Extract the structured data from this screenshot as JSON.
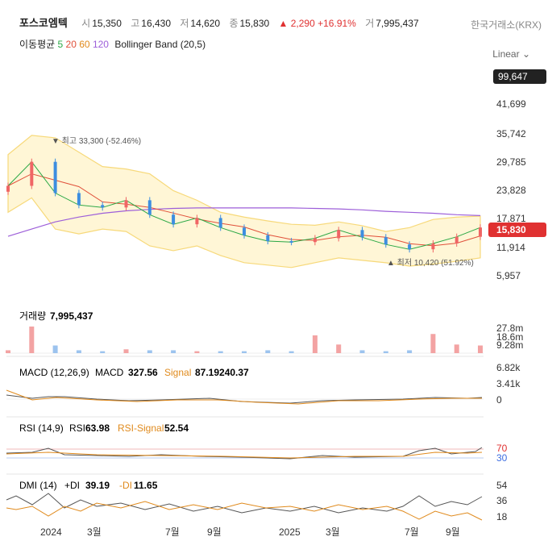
{
  "header": {
    "name": "포스코엠텍",
    "open_label": "시",
    "open": "15,350",
    "high_label": "고",
    "high": "16,430",
    "low_label": "저",
    "low": "14,620",
    "close_label": "종",
    "close": "15,830",
    "change": "▲ 2,290",
    "change_pct": "+16.91%",
    "volume_label": "거",
    "volume": "7,995,437",
    "exchange": "한국거래소(KRX)"
  },
  "ma_legend": {
    "label": "이동평균",
    "p5": "5",
    "p20": "20",
    "p60": "60",
    "p120": "120",
    "boll": "Bollinger Band (20,5)"
  },
  "scale_mode": "Linear",
  "colors": {
    "up": "#f06565",
    "down": "#3d8ee0",
    "ma5": "#2aa845",
    "ma20": "#e0503a",
    "ma60": "#e08a1c",
    "ma120": "#9d5fd9",
    "band_fill": "#fff6d6",
    "band_line": "#f7d97a"
  },
  "price_panel": {
    "yticks": [
      "41,699",
      "35,742",
      "29,785",
      "23,828",
      "17,871",
      "11,914",
      "5,957"
    ],
    "ytick_values": [
      41699,
      35742,
      29785,
      23828,
      17871,
      11914,
      5957
    ],
    "top_label": "99,647",
    "current_label": "15,830",
    "max_annotation": "▼ 최고 33,300 (-52.46%)",
    "min_annotation": "▲ 최저 10,420 (51.92%)"
  },
  "volume_panel": {
    "title": "거래량",
    "value": "7,995,437",
    "yticks": [
      "27.8m",
      "18.6m",
      "9.28m"
    ]
  },
  "macd_panel": {
    "title": "MACD (12,26,9)",
    "macd_label": "MACD",
    "macd_value": "327.56",
    "signal_label": "Signal",
    "signal_value": "87.19240.37",
    "yticks": [
      "6.82k",
      "3.41k",
      "0"
    ]
  },
  "rsi_panel": {
    "title": "RSI (14,9)",
    "rsi_label": "RSI",
    "rsi_value": "63.98",
    "signal_label": "RSI-Signal",
    "signal_value": "52.54",
    "yticks": [
      "70",
      "30"
    ]
  },
  "dmi_panel": {
    "title": "DMI (14)",
    "pdi_label": "+DI",
    "pdi_value": "39.19",
    "mdi_label": "-DI",
    "mdi_value": "11.65",
    "yticks": [
      "54",
      "36",
      "18"
    ]
  },
  "xaxis": [
    "2024",
    "3월",
    "7월",
    "9월",
    "2025",
    "3월",
    "7월",
    "9월"
  ],
  "chart_data": {
    "type": "candlestick",
    "dates": [
      "2024-01",
      "2024-02",
      "2024-03",
      "2024-04",
      "2024-05",
      "2024-06",
      "2024-07",
      "2024-08",
      "2024-09",
      "2024-10",
      "2024-11",
      "2024-12",
      "2025-01",
      "2025-02",
      "2025-03",
      "2025-04",
      "2025-05",
      "2025-06",
      "2025-07",
      "2025-08",
      "2025-09"
    ],
    "close": [
      24500,
      29500,
      23000,
      20500,
      20000,
      21500,
      18500,
      16500,
      17800,
      15800,
      14200,
      13000,
      12800,
      13600,
      15300,
      13800,
      12300,
      11300,
      12500,
      13900,
      15830
    ],
    "bb_upper": [
      31000,
      35000,
      34500,
      31500,
      28500,
      28000,
      27000,
      23500,
      21500,
      19000,
      18000,
      17200,
      16500,
      16300,
      17000,
      16200,
      15000,
      15800,
      17500,
      18000,
      18200
    ],
    "bb_lower": [
      19000,
      22000,
      15500,
      14500,
      15500,
      15000,
      12000,
      11000,
      12000,
      10000,
      8500,
      8000,
      7500,
      8500,
      9500,
      9000,
      8500,
      7800,
      8200,
      8800,
      9500
    ],
    "ma120": [
      14000,
      15500,
      17000,
      18000,
      18800,
      19300,
      19600,
      19800,
      19900,
      19900,
      19900,
      19900,
      19900,
      19800,
      19700,
      19500,
      19200,
      19000,
      18800,
      18500,
      18300
    ],
    "volume_m": [
      3,
      27.8,
      8,
      3,
      2,
      4,
      3,
      3,
      2,
      2,
      2,
      3,
      2,
      18.6,
      9,
      3,
      2,
      3,
      20,
      9,
      7.995
    ],
    "y_range": [
      5957,
      41699
    ]
  }
}
